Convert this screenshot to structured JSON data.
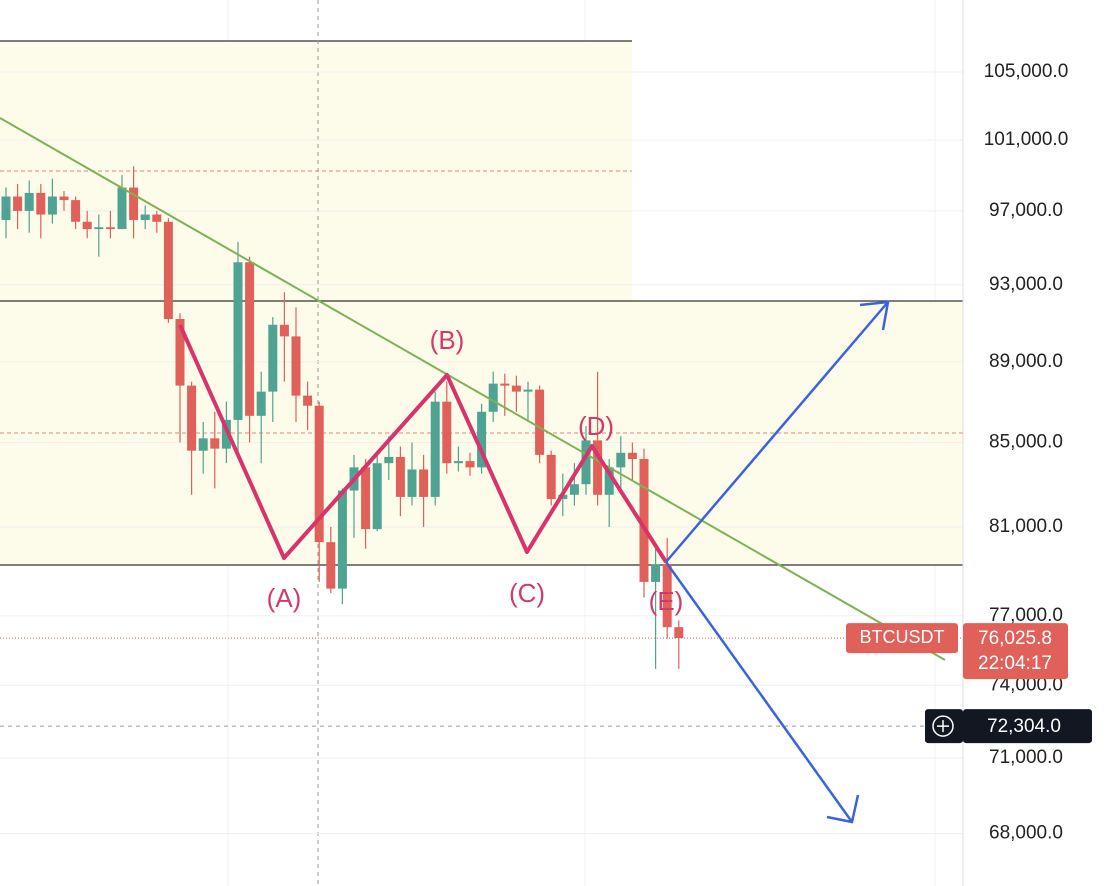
{
  "chart_data": {
    "type": "candlestick",
    "symbol": "BTCUSDT",
    "last_price": {
      "value": 76025.8,
      "label": "76,025.8"
    },
    "countdown": "22:04:17",
    "crosshair_price": {
      "value": 72304,
      "label": "72,304.0"
    },
    "annotations": [
      "(A)",
      "(B)",
      "(C)",
      "(D)",
      "(E)"
    ],
    "open": [
      96500,
      97800,
      97000,
      98000,
      96800,
      97800,
      97600,
      96400,
      96000,
      96100,
      96000,
      98300,
      96500,
      96800,
      96400,
      91200,
      87800,
      84600,
      85200,
      84700,
      86100,
      94200,
      86300,
      87500,
      90900,
      90300,
      87300,
      86800,
      80300,
      78200,
      82700,
      83800,
      80900,
      84000,
      84300,
      82400,
      83700,
      82400,
      87000,
      84000,
      84100,
      83800,
      86500,
      87900,
      87800,
      87500,
      87600,
      84400,
      82300,
      82500,
      83000,
      85100,
      82500,
      83800,
      84500,
      84200,
      78500,
      79300,
      76500
    ],
    "high": [
      98300,
      98500,
      98700,
      98500,
      98800,
      98100,
      97800,
      97000,
      96800,
      97000,
      99000,
      99500,
      97300,
      97000,
      96600,
      91500,
      88000,
      86000,
      86500,
      87000,
      95300,
      94500,
      88500,
      91300,
      92600,
      91800,
      88000,
      87000,
      81000,
      82800,
      84400,
      84200,
      84500,
      85300,
      84800,
      85000,
      84400,
      87500,
      88000,
      84800,
      84500,
      86900,
      88500,
      88400,
      88300,
      88000,
      87800,
      84600,
      83500,
      84000,
      85800,
      88500,
      84200,
      85300,
      85000,
      84700,
      80000,
      80500,
      76800
    ],
    "low": [
      95500,
      96000,
      95800,
      95500,
      96300,
      97000,
      96000,
      95500,
      94500,
      95500,
      96000,
      95500,
      96000,
      95800,
      91000,
      85000,
      82500,
      83500,
      82800,
      84000,
      84500,
      85000,
      84000,
      86000,
      88000,
      86000,
      85600,
      78500,
      78000,
      77500,
      80500,
      80000,
      80800,
      83200,
      81500,
      82000,
      81000,
      82000,
      83500,
      83600,
      83400,
      83500,
      86000,
      86300,
      86500,
      86000,
      84000,
      82000,
      81500,
      82000,
      82500,
      82000,
      81000,
      82500,
      83200,
      77800,
      74700,
      76000,
      74700
    ],
    "close": [
      97800,
      97000,
      98000,
      96800,
      97800,
      97600,
      96400,
      96000,
      96100,
      96000,
      98300,
      96500,
      96800,
      96400,
      91200,
      87800,
      84600,
      85200,
      84700,
      86100,
      94200,
      86300,
      87500,
      90900,
      90300,
      87300,
      86800,
      80300,
      78200,
      82700,
      83800,
      80900,
      84000,
      84300,
      82400,
      83700,
      82400,
      87000,
      84000,
      84100,
      83800,
      86500,
      87900,
      87800,
      87500,
      87600,
      84400,
      82300,
      82500,
      83000,
      85100,
      82500,
      83800,
      84500,
      84200,
      78500,
      79300,
      76500,
      76025.8
    ],
    "up_color": "#4fa393",
    "down_color": "#e0605a",
    "log_scale": true,
    "ylim": [
      66000,
      109400
    ],
    "yticks": [
      {
        "value": 105000,
        "label": "105,000.0"
      },
      {
        "value": 101000,
        "label": "101,000.0"
      },
      {
        "value": 97000,
        "label": "97,000.0"
      },
      {
        "value": 93000,
        "label": "93,000.0"
      },
      {
        "value": 89000,
        "label": "89,000.0"
      },
      {
        "value": 85000,
        "label": "85,000.0"
      },
      {
        "value": 81000,
        "label": "81,000.0"
      },
      {
        "value": 77000,
        "label": "77,000.0"
      },
      {
        "value": 74000,
        "label": "74,000.0"
      },
      {
        "value": 71000,
        "label": "71,000.0"
      },
      {
        "value": 68000,
        "label": "68,000.0"
      }
    ]
  }
}
